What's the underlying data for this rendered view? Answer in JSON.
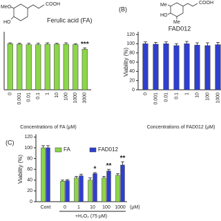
{
  "chart_data": [
    {
      "type": "bar",
      "title": "Ferulic acid (FA)",
      "structure_labels": [
        "COOH",
        "MeO",
        "HO"
      ],
      "categories": [
        "0",
        "0.001",
        "0.01",
        "0.1",
        "1",
        "10",
        "100",
        "1000",
        "3000"
      ],
      "values": [
        100,
        99,
        98,
        98,
        99,
        99,
        99,
        98,
        88
      ],
      "errors": [
        2,
        2,
        3,
        3,
        3,
        2,
        3,
        2,
        3
      ],
      "color": "#8cd64a",
      "ylim": [
        0,
        120
      ],
      "xlabel": "Concentrations of FA (μM)",
      "annotations": [
        {
          "text": "***",
          "category": "3000"
        }
      ]
    },
    {
      "type": "bar",
      "panel": "(B)",
      "title": "FAD012",
      "structure_labels": [
        "COOH",
        "Me",
        "HO",
        "Me"
      ],
      "ylabel": "Viability (%)",
      "categories": [
        "0",
        "0.001",
        "0.01",
        "0.1",
        "1",
        "10",
        "100",
        "1000"
      ],
      "values": [
        100,
        99,
        100,
        96,
        100,
        97,
        96,
        98
      ],
      "errors": [
        4,
        4,
        4,
        4,
        5,
        5,
        6,
        5
      ],
      "color": "#2f3fcf",
      "ylim": [
        0,
        120
      ],
      "yticks": [
        0,
        20,
        40,
        60,
        80,
        100,
        120
      ],
      "xlabel": "Concentrations of FAD012 (μM)"
    },
    {
      "type": "bar",
      "panel": "(C)",
      "ylabel": "Viability (%)",
      "categories": [
        "Cont",
        "0",
        "1",
        "10",
        "100",
        "1000"
      ],
      "x_unit": "(μM)",
      "xlabel": "+H₂O₂ (75 μM)",
      "series": [
        {
          "name": "FA",
          "color": "#8cd64a",
          "values": [
            100,
            38,
            44,
            40,
            44,
            49
          ],
          "errors": [
            4,
            2,
            3,
            4,
            3,
            3
          ]
        },
        {
          "name": "FAD012",
          "color": "#2f3fcf",
          "values": [
            100,
            39,
            48,
            52,
            57,
            68
          ],
          "errors": [
            4,
            2,
            3,
            2,
            3,
            6
          ]
        }
      ],
      "ylim": [
        0,
        120
      ],
      "yticks": [
        0,
        20,
        40,
        60,
        80,
        100,
        120
      ],
      "annotations": [
        {
          "text": "*",
          "series": "FAD012",
          "category": "10"
        },
        {
          "text": "**",
          "series": "FAD012",
          "category": "100"
        },
        {
          "text": "**",
          "series": "FAD012",
          "category": "1000"
        }
      ]
    }
  ]
}
